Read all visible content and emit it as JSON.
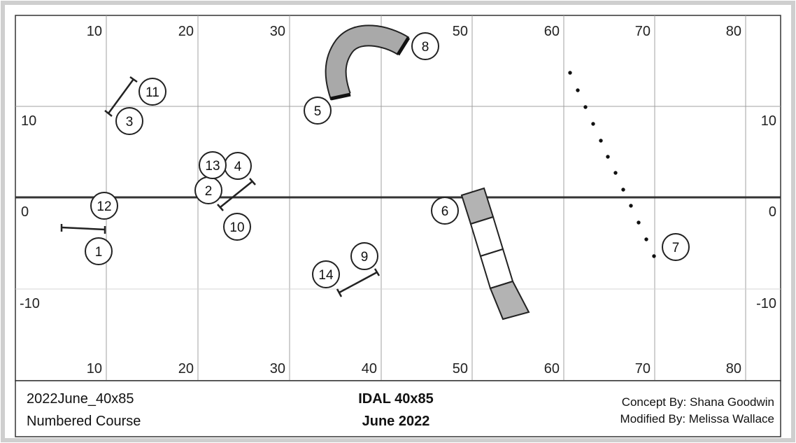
{
  "course": {
    "x_ticks_top": [
      "10",
      "20",
      "30",
      "40",
      "50",
      "60",
      "70",
      "80"
    ],
    "x_ticks_bottom": [
      "10",
      "20",
      "30",
      "40",
      "50",
      "60",
      "70",
      "80"
    ],
    "y_ticks_left": [
      "10",
      "0",
      "-10"
    ],
    "y_ticks_right": [
      "10",
      "0",
      "-10"
    ],
    "obstacles": [
      {
        "number": "1"
      },
      {
        "number": "2"
      },
      {
        "number": "3"
      },
      {
        "number": "4"
      },
      {
        "number": "5"
      },
      {
        "number": "6"
      },
      {
        "number": "7"
      },
      {
        "number": "8"
      },
      {
        "number": "9"
      },
      {
        "number": "10"
      },
      {
        "number": "11"
      },
      {
        "number": "12"
      },
      {
        "number": "13"
      },
      {
        "number": "14"
      }
    ],
    "equipment": {
      "jumps": [
        "bar-jump",
        "bar-jump",
        "bar-jump",
        "bar-jump"
      ],
      "tunnel": "curved-tunnel",
      "dogwalk": "contact-plank",
      "weave": "weave-poles"
    },
    "colors": {
      "contact": "#b3b3b3",
      "tunnel": "#a9a9a9",
      "line": "#333333",
      "grid": "#999999"
    }
  },
  "footer": {
    "left_line1": "2022June_40x85",
    "left_line2": "Numbered Course",
    "center_line1": "IDAL 40x85",
    "center_line2": "June 2022",
    "right_line1": "Concept By: Shana Goodwin",
    "right_line2": "Modified By: Melissa Wallace"
  }
}
